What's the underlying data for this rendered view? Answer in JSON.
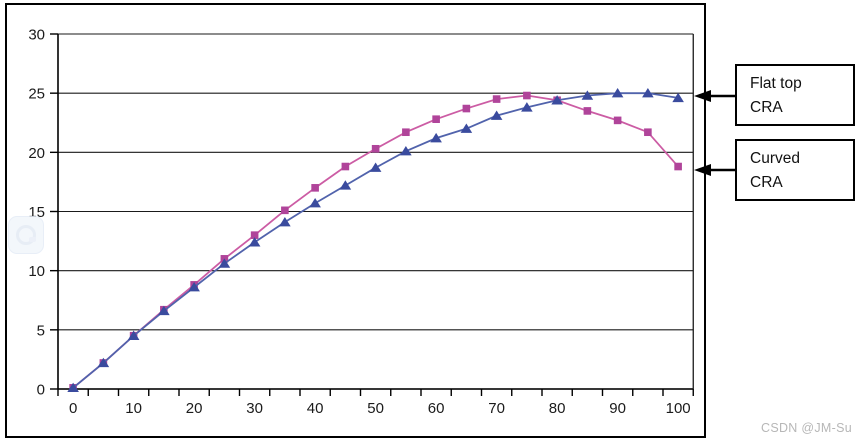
{
  "watermark_credit": "CSDN @JM-Su",
  "annotations": [
    {
      "id": "flat-top",
      "lines": [
        "Flat top",
        "CRA"
      ]
    },
    {
      "id": "curved",
      "lines": [
        "Curved",
        "CRA"
      ]
    }
  ],
  "chart_data": {
    "type": "line",
    "title": "",
    "xlabel": "",
    "ylabel": "",
    "grid": true,
    "x": [
      0,
      5,
      10,
      15,
      20,
      25,
      30,
      35,
      40,
      45,
      50,
      55,
      60,
      65,
      70,
      75,
      80,
      85,
      90,
      95,
      100
    ],
    "x_tick_labels": [
      "0",
      "10",
      "20",
      "30",
      "40",
      "50",
      "60",
      "70",
      "80",
      "90",
      "100"
    ],
    "y_ticks": [
      0,
      5,
      10,
      15,
      20,
      25,
      30
    ],
    "ylim": [
      0,
      30
    ],
    "legend_position": "annotation-boxes-right",
    "series": [
      {
        "name": "Flat top CRA",
        "marker": "triangle",
        "line_color": "#5163AC",
        "marker_color": "#3A4B9E",
        "values": [
          0.1,
          2.2,
          4.5,
          6.6,
          8.6,
          10.6,
          12.4,
          14.1,
          15.7,
          17.2,
          18.7,
          20.1,
          21.2,
          22.0,
          23.1,
          23.8,
          24.4,
          24.8,
          25.0,
          25.0,
          24.6
        ]
      },
      {
        "name": "Curved CRA",
        "marker": "square",
        "line_color": "#CC5CA4",
        "marker_color": "#B0449A",
        "values": [
          0.1,
          2.2,
          4.5,
          6.7,
          8.8,
          11.0,
          13.0,
          15.1,
          17.0,
          18.8,
          20.3,
          21.7,
          22.8,
          23.7,
          24.5,
          24.8,
          24.4,
          23.5,
          22.7,
          21.7,
          18.8
        ]
      }
    ]
  }
}
